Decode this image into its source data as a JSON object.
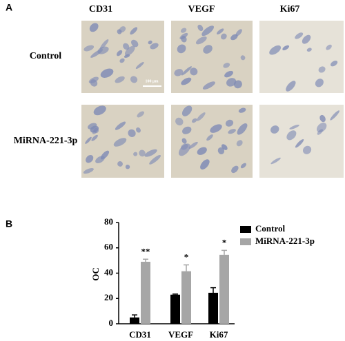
{
  "panels": {
    "a": {
      "label": "A",
      "columns": [
        "CD31",
        "VEGF",
        "Ki67"
      ],
      "rows": [
        "Control",
        "MiRNA-221-3p"
      ],
      "scale_bar": "100 μm"
    },
    "b": {
      "label": "B"
    }
  },
  "chart_data": {
    "type": "bar",
    "ylabel": "OC",
    "categories": [
      "CD31",
      "VEGF",
      "Ki67"
    ],
    "series": [
      {
        "name": "Control",
        "color": "#000000",
        "values": [
          5,
          23,
          24.5
        ],
        "errors": [
          2,
          0.5,
          4
        ]
      },
      {
        "name": "MiRNA-221-3p",
        "color": "#a6a6a6",
        "values": [
          49,
          41.5,
          54.5
        ],
        "errors": [
          2,
          5,
          3.5
        ]
      }
    ],
    "annotations": [
      "**",
      "*",
      "*"
    ],
    "ylim": [
      0,
      80
    ],
    "yticks": [
      0,
      20,
      40,
      60,
      80
    ],
    "legend": "upper right"
  }
}
